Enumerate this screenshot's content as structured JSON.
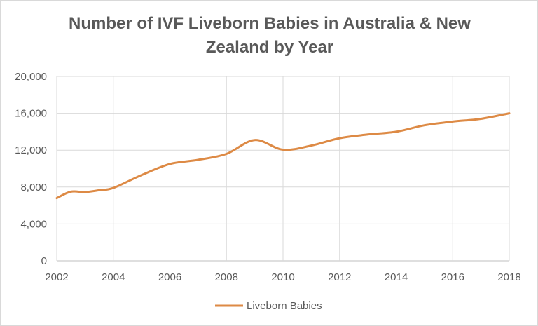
{
  "chart_data": {
    "type": "line",
    "title_line1": "Number of IVF Liveborn Babies in Australia & New",
    "title_line2": "Zealand by Year",
    "xlabel": "",
    "ylabel": "",
    "x": [
      2002,
      2002.5,
      2003,
      2003.5,
      2004,
      2005,
      2006,
      2007,
      2008,
      2009,
      2010,
      2011,
      2012,
      2013,
      2014,
      2015,
      2016,
      2017,
      2018
    ],
    "series": [
      {
        "name": "Liveborn Babies",
        "color": "#dd8a45",
        "values": [
          6800,
          7500,
          7450,
          7650,
          7900,
          9300,
          10500,
          10950,
          11600,
          13100,
          12050,
          12500,
          13300,
          13700,
          14000,
          14700,
          15100,
          15400,
          16000
        ]
      }
    ],
    "xlim": [
      2002,
      2018
    ],
    "ylim": [
      0,
      20000
    ],
    "x_ticks": [
      "2002",
      "2004",
      "2006",
      "2008",
      "2010",
      "2012",
      "2014",
      "2016",
      "2018"
    ],
    "y_ticks": [
      "0",
      "4,000",
      "8,000",
      "12,000",
      "16,000",
      "20,000"
    ],
    "grid": true,
    "legend_position": "bottom"
  }
}
